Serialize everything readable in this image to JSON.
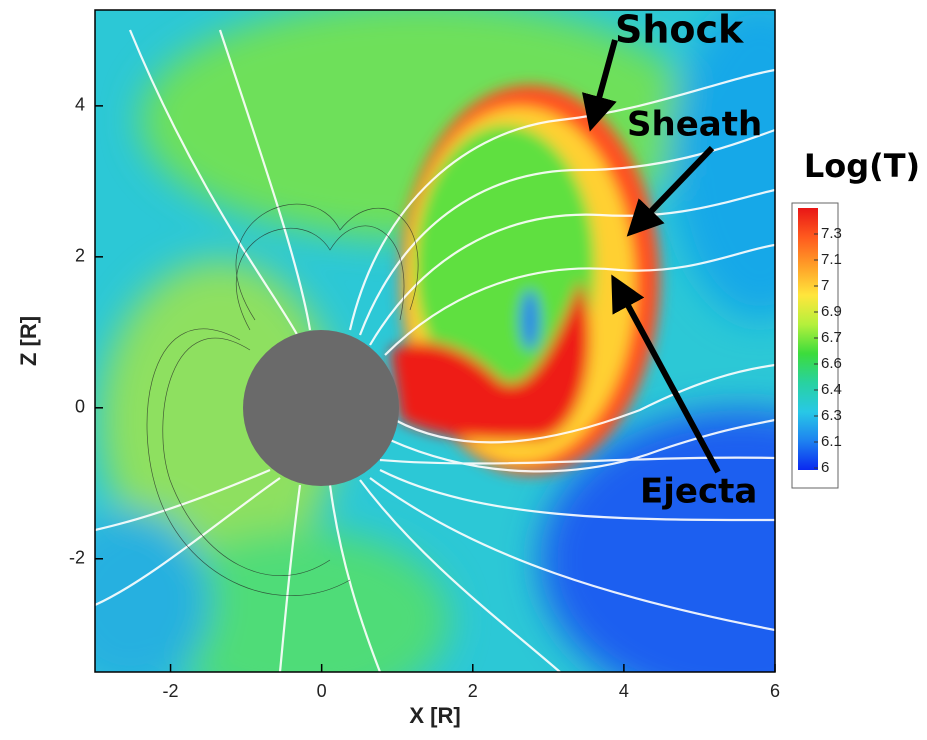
{
  "chart_data": {
    "type": "contour",
    "xlabel": "X [R]",
    "ylabel": "Z [R]",
    "xlim": [
      -3,
      6
    ],
    "ylim": [
      -3.5,
      5.27
    ],
    "xticks": [
      -2,
      0,
      2,
      4,
      6
    ],
    "yticks": [
      -2,
      0,
      2,
      4
    ],
    "colorbar": {
      "title": "Log(T)",
      "levels": [
        7.3,
        7.1,
        7.0,
        6.9,
        6.7,
        6.6,
        6.4,
        6.3,
        6.1,
        6.0
      ],
      "colors": [
        "#e81616",
        "#ff5a1e",
        "#ffa028",
        "#ffe63c",
        "#b4f03c",
        "#3cdc3c",
        "#28d2a0",
        "#28c8e6",
        "#1e82f0",
        "#0a28f0"
      ]
    },
    "annotations": [
      "Shock",
      "Sheath",
      "Ejecta"
    ]
  }
}
